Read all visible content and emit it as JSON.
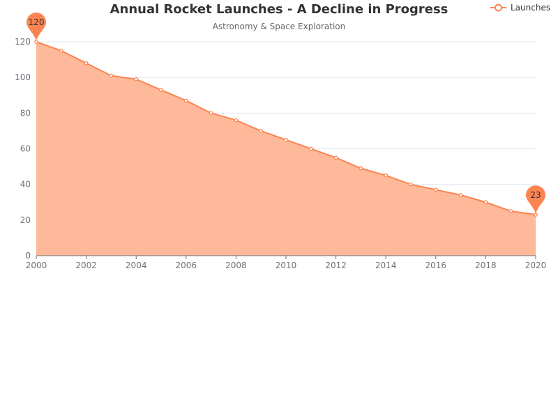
{
  "chart_data": {
    "type": "area",
    "title": "Annual Rocket Launches - A Decline in Progress",
    "subtitle": "Astronomy & Space Exploration",
    "xlabel": "",
    "ylabel": "",
    "x": [
      2000,
      2001,
      2002,
      2003,
      2004,
      2005,
      2006,
      2007,
      2008,
      2009,
      2010,
      2011,
      2012,
      2013,
      2014,
      2015,
      2016,
      2017,
      2018,
      2019,
      2020
    ],
    "xticks": [
      "2000",
      "2002",
      "2004",
      "2006",
      "2008",
      "2010",
      "2012",
      "2014",
      "2016",
      "2018",
      "2020"
    ],
    "xlim": [
      2000,
      2020
    ],
    "ylim": [
      0,
      120
    ],
    "yticks": [
      "0",
      "20",
      "40",
      "60",
      "80",
      "100",
      "120"
    ],
    "grid": true,
    "legend_position": "top-right",
    "series": [
      {
        "name": "Launches",
        "values": [
          120,
          115,
          108,
          101,
          99,
          93,
          87,
          80,
          76,
          70,
          65,
          60,
          55,
          49,
          45,
          40,
          37,
          34,
          30,
          25,
          23
        ],
        "color": "#fc8452",
        "area_color": "#fdb999"
      }
    ],
    "annotations": [
      {
        "type": "max-pin",
        "x": 2000,
        "value": 120,
        "label": "120"
      },
      {
        "type": "min-pin",
        "x": 2020,
        "value": 23,
        "label": "23"
      }
    ]
  }
}
